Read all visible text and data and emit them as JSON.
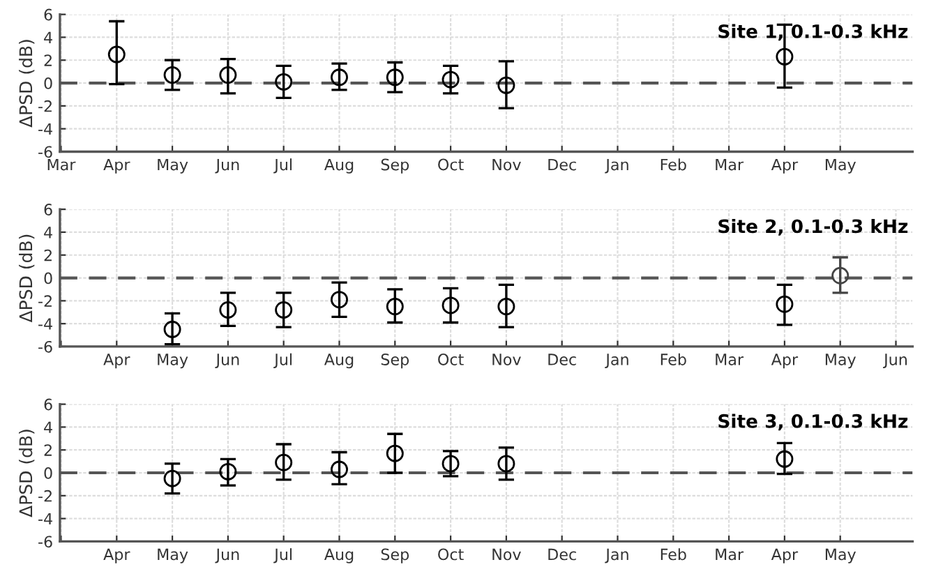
{
  "chart_data": [
    {
      "type": "scatter",
      "title": "Site 1, 0.1-0.3 kHz",
      "ylabel": "ΔPSD (dB)",
      "marker": "circle",
      "grid": true,
      "categories": [
        "Mar",
        "Apr",
        "May",
        "Jun",
        "Jul",
        "Aug",
        "Sep",
        "Oct",
        "Nov",
        "Dec",
        "Jan",
        "Feb",
        "Mar",
        "Apr",
        "May"
      ],
      "ylim": [
        -6,
        6
      ],
      "yticks": [
        -6,
        -4,
        -2,
        0,
        2,
        4,
        6
      ],
      "ref_lines": [
        {
          "axis": "y",
          "value": 0,
          "color": "#555555",
          "line_style": "dashed"
        }
      ],
      "series": [
        {
          "color": "#000000",
          "values": [
            null,
            2.5,
            0.7,
            0.7,
            0.1,
            0.5,
            0.5,
            0.3,
            -0.2,
            null,
            null,
            null,
            null,
            2.3,
            null
          ],
          "errors": [
            null,
            [
              -0.1,
              5.4
            ],
            [
              -0.6,
              2.0
            ],
            [
              -0.9,
              2.1
            ],
            [
              -1.3,
              1.5
            ],
            [
              -0.6,
              1.7
            ],
            [
              -0.8,
              1.8
            ],
            [
              -0.9,
              1.5
            ],
            [
              -2.2,
              1.9
            ],
            null,
            null,
            null,
            null,
            [
              -0.4,
              5.1
            ],
            null
          ]
        }
      ]
    },
    {
      "type": "scatter",
      "title": "Site 2, 0.1-0.3 kHz",
      "ylabel": "ΔPSD (dB)",
      "marker": "circle",
      "grid": true,
      "categories": [
        null,
        "Apr",
        "May",
        "Jun",
        "Jul",
        "Aug",
        "Sep",
        "Oct",
        "Nov",
        "Dec",
        "Jan",
        "Feb",
        "Mar",
        "Apr",
        "May",
        "Jun"
      ],
      "ylim": [
        -6,
        6
      ],
      "yticks": [
        -6,
        -4,
        -2,
        0,
        2,
        4,
        6
      ],
      "ref_lines": [
        {
          "axis": "y",
          "value": 0,
          "color": "#555555",
          "line_style": "dashed"
        }
      ],
      "series": [
        {
          "color": "#000000",
          "values": [
            null,
            null,
            -4.5,
            -2.8,
            -2.8,
            -1.9,
            -2.5,
            -2.4,
            -2.5,
            null,
            null,
            null,
            null,
            -2.3,
            null,
            null
          ],
          "errors": [
            null,
            null,
            [
              -5.8,
              -3.1
            ],
            [
              -4.2,
              -1.3
            ],
            [
              -4.3,
              -1.3
            ],
            [
              -3.4,
              -0.4
            ],
            [
              -3.9,
              -1.0
            ],
            [
              -3.9,
              -0.9
            ],
            [
              -4.3,
              -0.6
            ],
            null,
            null,
            null,
            null,
            [
              -4.1,
              -0.6
            ],
            null,
            null
          ]
        },
        {
          "color": "#444444",
          "values": [
            null,
            null,
            null,
            null,
            null,
            null,
            null,
            null,
            null,
            null,
            null,
            null,
            null,
            null,
            0.2,
            null
          ],
          "errors": [
            null,
            null,
            null,
            null,
            null,
            null,
            null,
            null,
            null,
            null,
            null,
            null,
            null,
            null,
            [
              -1.3,
              1.8
            ],
            null
          ]
        }
      ]
    },
    {
      "type": "scatter",
      "title": "Site 3, 0.1-0.3 kHz",
      "ylabel": "ΔPSD (dB)",
      "marker": "circle",
      "grid": true,
      "categories": [
        null,
        "Apr",
        "May",
        "Jun",
        "Jul",
        "Aug",
        "Sep",
        "Oct",
        "Nov",
        "Dec",
        "Jan",
        "Feb",
        "Mar",
        "Apr",
        "May"
      ],
      "ylim": [
        -6,
        6
      ],
      "yticks": [
        -6,
        -4,
        -2,
        0,
        2,
        4,
        6
      ],
      "ref_lines": [
        {
          "axis": "y",
          "value": 0,
          "color": "#555555",
          "line_style": "dashed"
        }
      ],
      "series": [
        {
          "color": "#000000",
          "values": [
            null,
            null,
            -0.5,
            0.1,
            0.9,
            0.3,
            1.7,
            0.8,
            0.8,
            null,
            null,
            null,
            null,
            1.2,
            null
          ],
          "errors": [
            null,
            null,
            [
              -1.8,
              0.8
            ],
            [
              -1.1,
              1.2
            ],
            [
              -0.6,
              2.5
            ],
            [
              -1.0,
              1.8
            ],
            [
              0.0,
              3.4
            ],
            [
              -0.3,
              1.9
            ],
            [
              -0.6,
              2.2
            ],
            null,
            null,
            null,
            null,
            [
              -0.1,
              2.6
            ],
            null
          ]
        }
      ]
    }
  ]
}
